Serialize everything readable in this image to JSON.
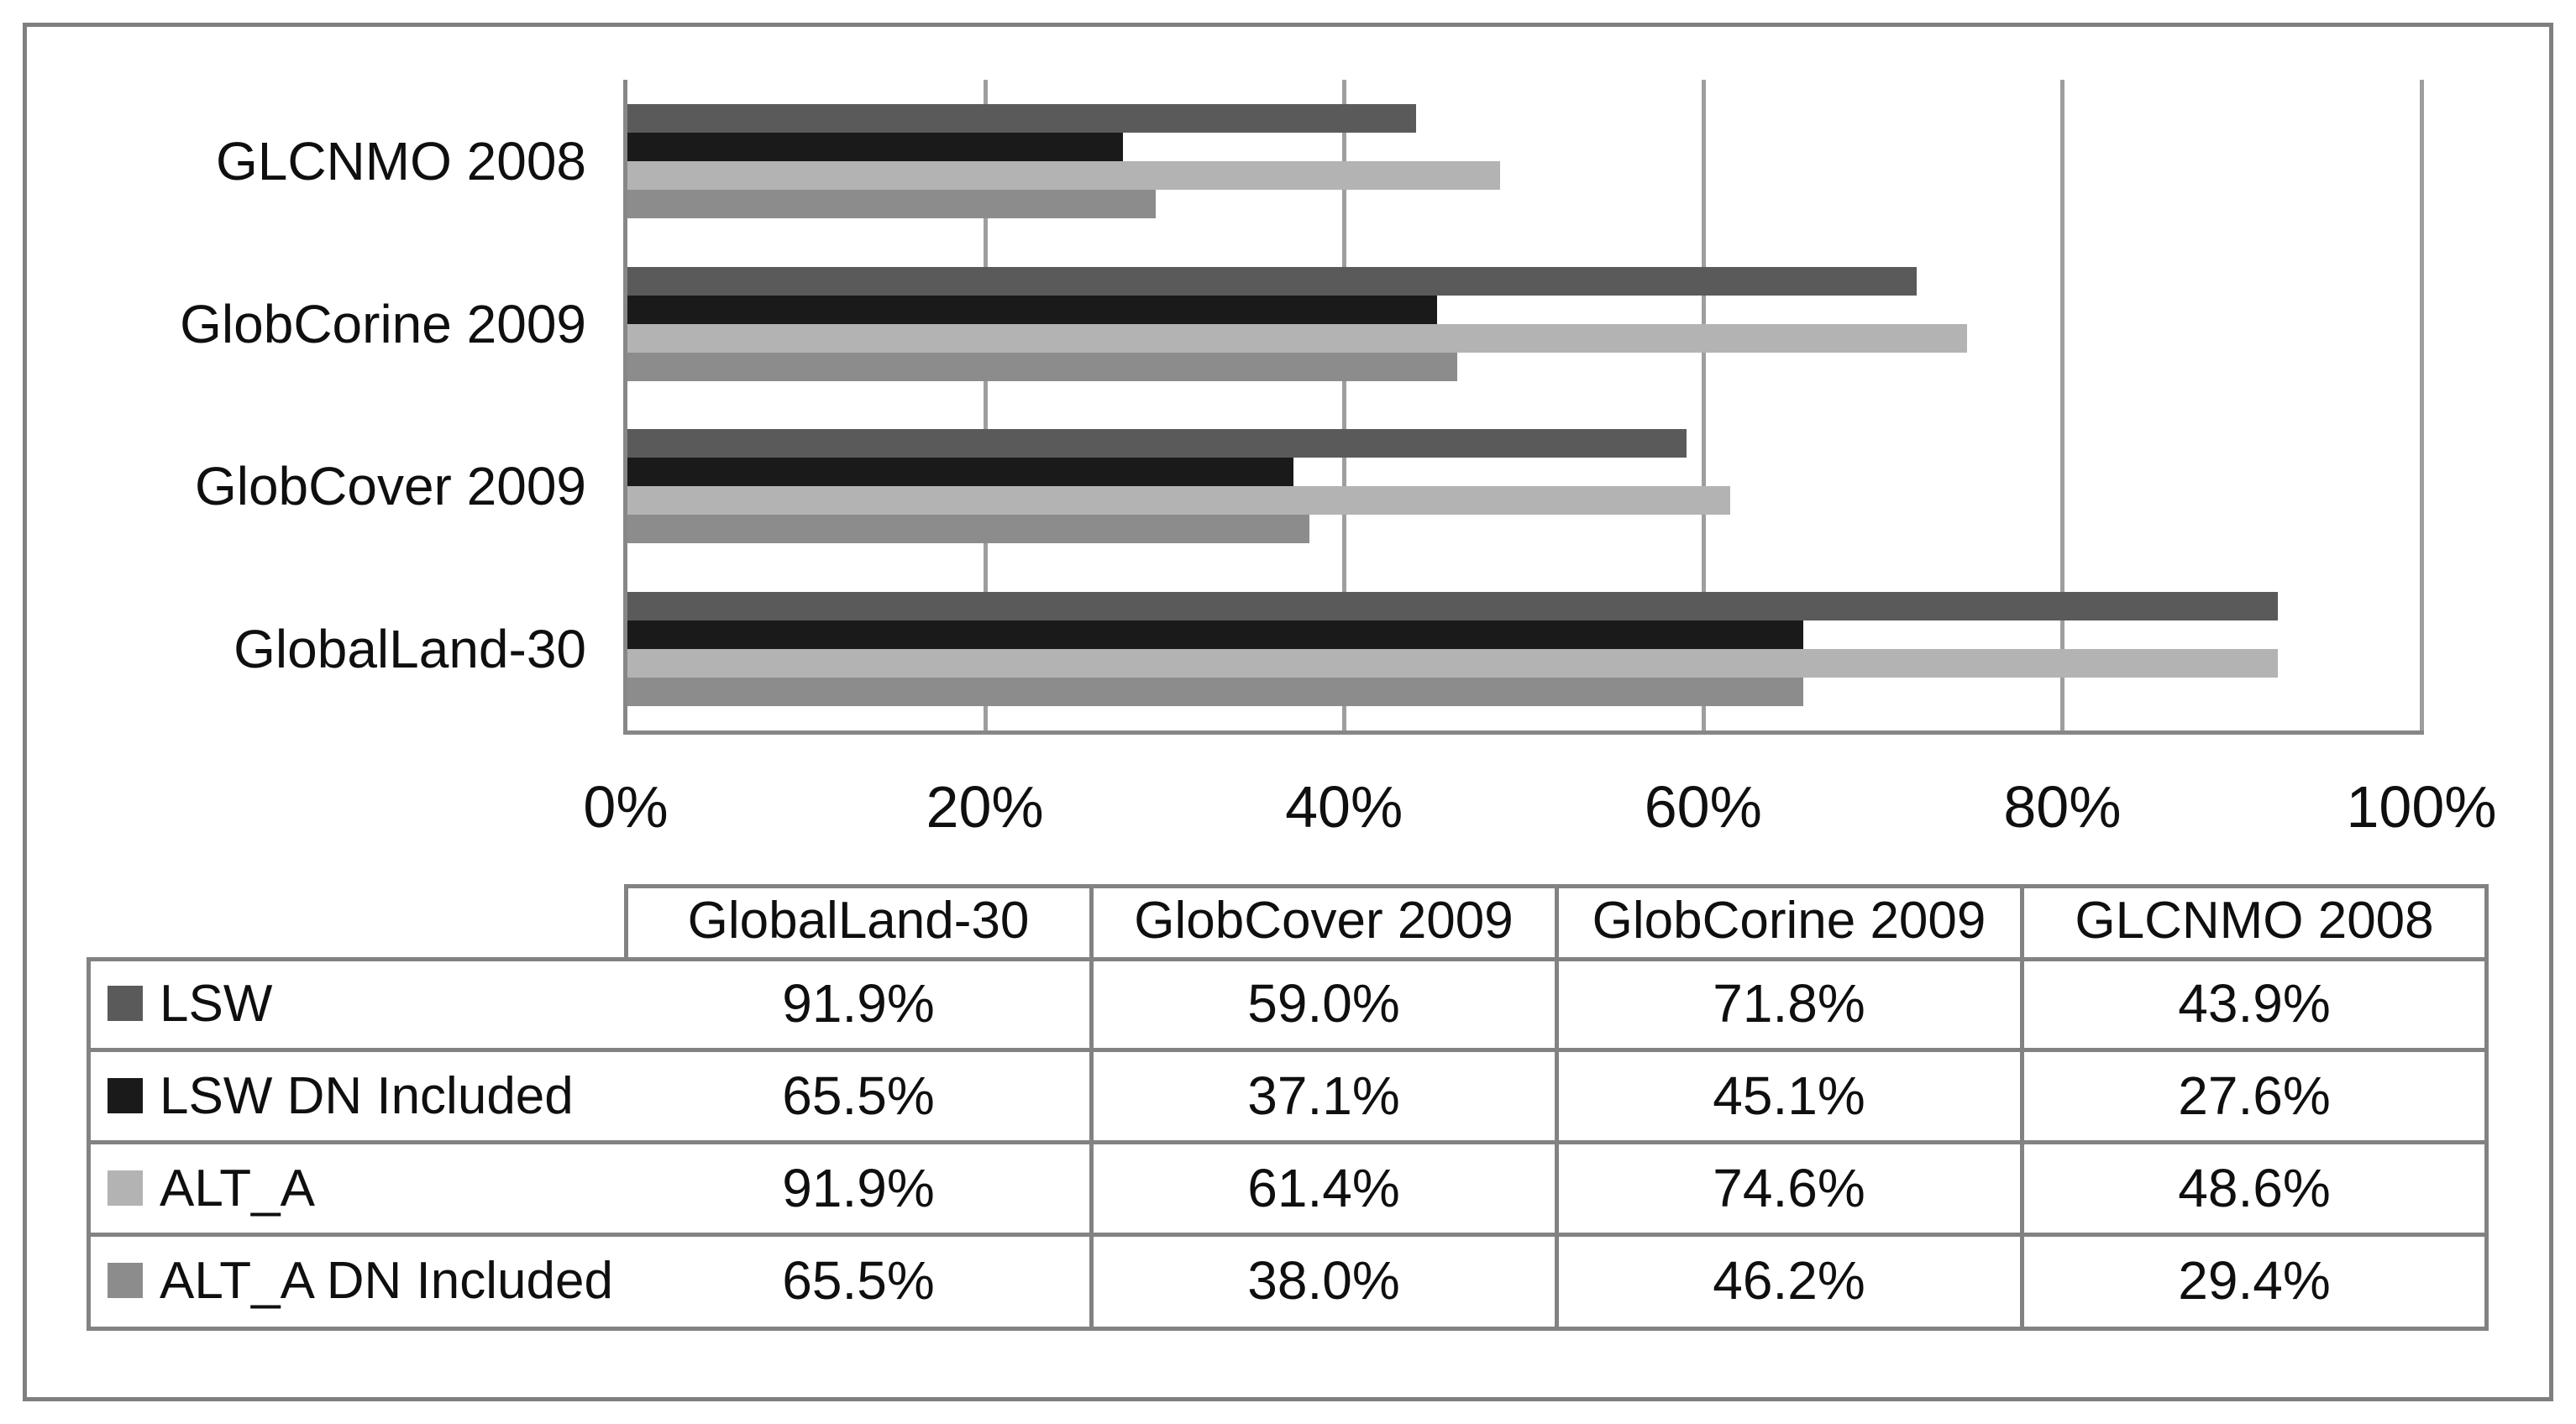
{
  "chart_data": {
    "type": "bar",
    "orientation": "horizontal",
    "title": "",
    "categories": [
      "GLCNMO 2008",
      "GlobCorine 2009",
      "GlobCover 2009",
      "GlobalLand-30"
    ],
    "series": [
      {
        "name": "LSW",
        "color": "#5a5a5a",
        "values": [
          43.9,
          71.8,
          59.0,
          91.9
        ]
      },
      {
        "name": "LSW DN Included",
        "color": "#1a1a1a",
        "values": [
          27.6,
          45.1,
          37.1,
          65.5
        ]
      },
      {
        "name": "ALT_A",
        "color": "#b3b3b3",
        "values": [
          48.6,
          74.6,
          61.4,
          91.9
        ]
      },
      {
        "name": "ALT_A DN Included",
        "color": "#8c8c8c",
        "values": [
          29.4,
          46.2,
          38.0,
          65.5
        ]
      }
    ],
    "x_axis": {
      "min": 0,
      "max": 100,
      "tick_labels": [
        "0%",
        "20%",
        "40%",
        "60%",
        "80%",
        "100%"
      ],
      "gridlines": true
    },
    "legend_position": "data-table-left-column"
  },
  "data_table": {
    "column_headers": [
      "GlobalLand-30",
      "GlobCover 2009",
      "GlobCorine 2009",
      "GLCNMO 2008"
    ],
    "rows": [
      {
        "label": "LSW",
        "values": [
          "91.9%",
          "59.0%",
          "71.8%",
          "43.9%"
        ]
      },
      {
        "label": "LSW DN Included",
        "values": [
          "65.5%",
          "37.1%",
          "45.1%",
          "27.6%"
        ]
      },
      {
        "label": "ALT_A",
        "values": [
          "91.9%",
          "61.4%",
          "74.6%",
          "48.6%"
        ]
      },
      {
        "label": "ALT_A DN Included",
        "values": [
          "65.5%",
          "38.0%",
          "46.2%",
          "29.4%"
        ]
      }
    ]
  },
  "colors": {
    "background": "#ffffff",
    "outer_border": "#7f7f7f",
    "axis_line": "#878787",
    "gridline": "#9e9e9e",
    "table_border": "#828282",
    "text": "#0f0f0f"
  }
}
